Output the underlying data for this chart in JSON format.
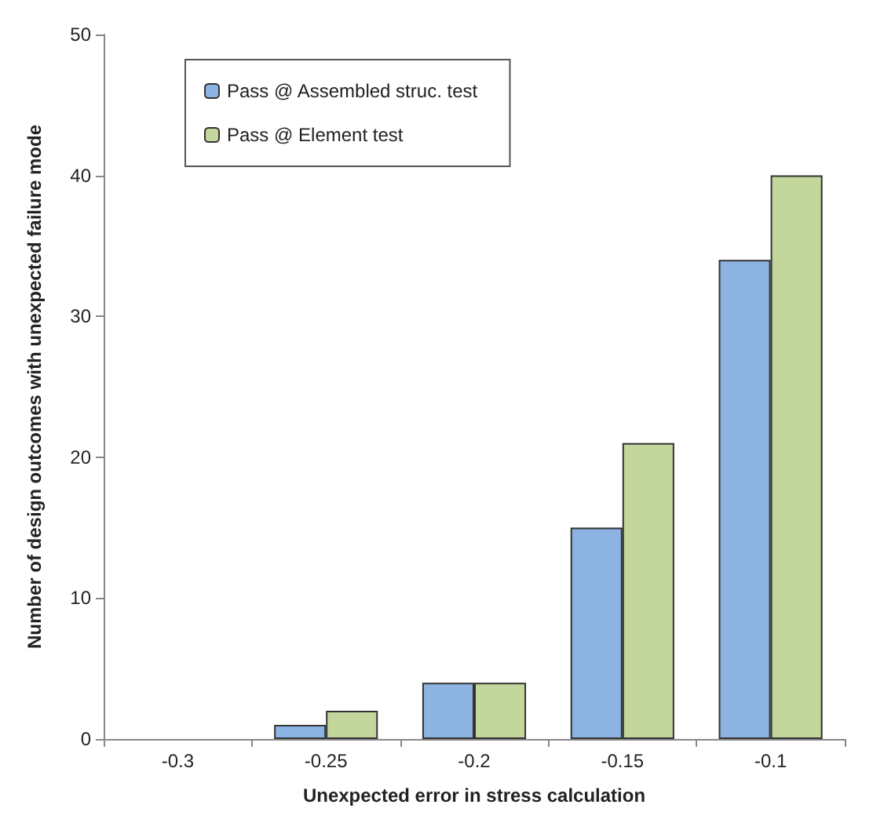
{
  "chart_data": {
    "type": "bar",
    "xlabel": "Unexpected error in stress calculation",
    "ylabel": "Number of design outcomes with unexpected failure mode",
    "categories": [
      "-0.3",
      "-0.25",
      "-0.2",
      "-0.15",
      "-0.1"
    ],
    "series": [
      {
        "name": "Pass @ Assembled struc. test",
        "color": "#8db3e2",
        "values": [
          0,
          1,
          4,
          15,
          34
        ]
      },
      {
        "name": "Pass @ Element test",
        "color": "#c3d69b",
        "values": [
          0,
          2,
          4,
          21,
          40
        ]
      }
    ],
    "ylim": [
      0,
      50
    ],
    "yticks": [
      0,
      10,
      20,
      30,
      40,
      50
    ],
    "grid": false,
    "legend": "top left"
  }
}
